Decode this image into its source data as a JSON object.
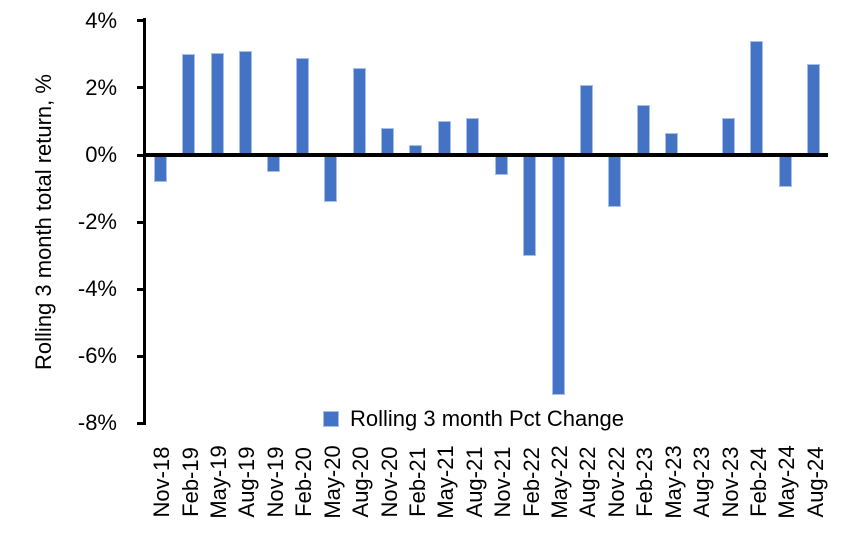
{
  "chart_data": {
    "type": "bar",
    "title": "",
    "xlabel": "",
    "ylabel": "Rolling 3 month total return, %",
    "ylim": [
      -8,
      4
    ],
    "grid": false,
    "yticks": [
      {
        "value": 4,
        "label": "4%"
      },
      {
        "value": 2,
        "label": "2%"
      },
      {
        "value": 0,
        "label": "0%"
      },
      {
        "value": -2,
        "label": "-2%"
      },
      {
        "value": -4,
        "label": "-4%"
      },
      {
        "value": -6,
        "label": "-6%"
      },
      {
        "value": -8,
        "label": "-8%"
      }
    ],
    "categories": [
      "Nov-18",
      "Feb-19",
      "May-19",
      "Aug-19",
      "Nov-19",
      "Feb-20",
      "May-20",
      "Aug-20",
      "Nov-20",
      "Feb-21",
      "May-21",
      "Aug-21",
      "Nov-21",
      "Feb-22",
      "May-22",
      "Aug-22",
      "Nov-22",
      "Feb-23",
      "May-23",
      "Aug-23",
      "Nov-23",
      "Feb-24",
      "May-24",
      "Aug-24"
    ],
    "series": [
      {
        "name": "Rolling 3 month Pct Change",
        "values": [
          -0.75,
          3.0,
          3.05,
          3.1,
          -0.45,
          2.9,
          -1.35,
          2.6,
          0.8,
          0.3,
          1.0,
          1.1,
          -0.55,
          -2.95,
          -7.1,
          2.1,
          -1.5,
          1.5,
          0.65,
          0.0,
          1.1,
          3.4,
          -0.9,
          2.7
        ]
      }
    ],
    "legend": {
      "position": "bottom-center",
      "marker": "square"
    },
    "colors": {
      "bar_fill": "#4472C4",
      "bar_border": "#A6BFE8",
      "axis": "#000000",
      "text": "#000000",
      "background": "#FFFFFF"
    }
  }
}
